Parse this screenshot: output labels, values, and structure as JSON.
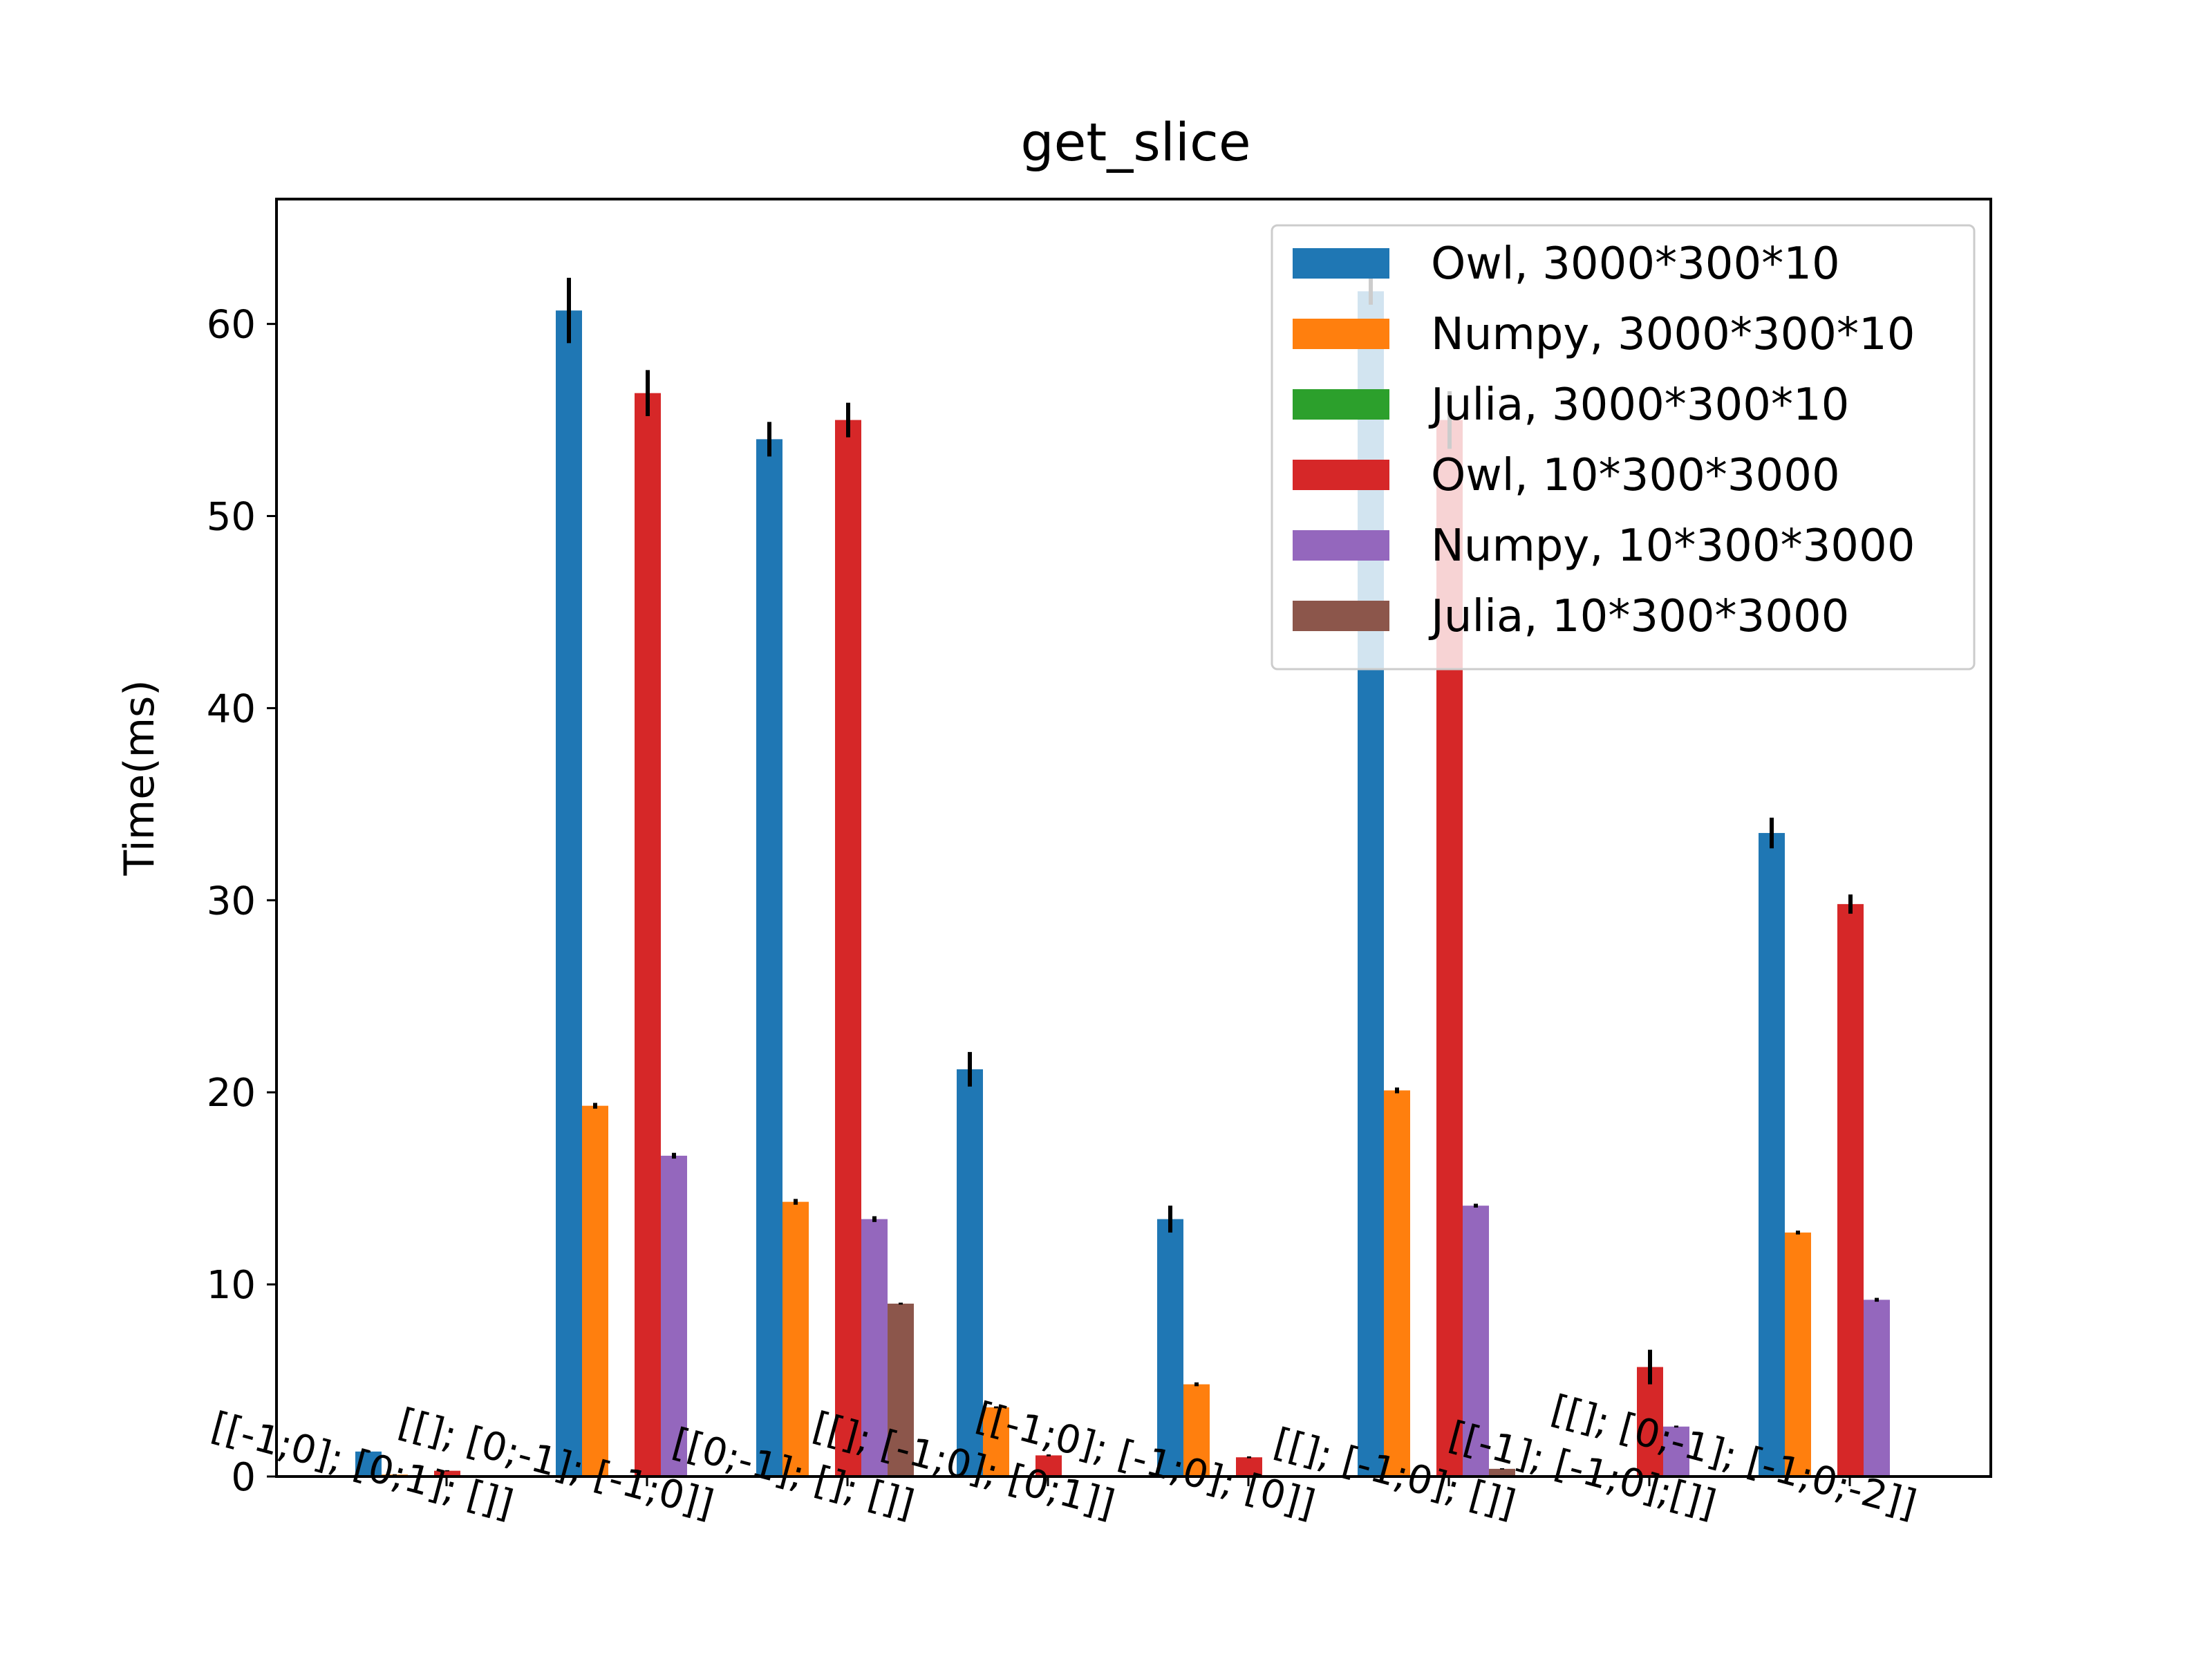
{
  "chart_data": {
    "type": "bar",
    "title": "get_slice",
    "xlabel": "",
    "ylabel": "Time(ms)",
    "ylim": [
      0,
      66.5
    ],
    "yticks": [
      0,
      10,
      20,
      30,
      40,
      50,
      60
    ],
    "grid": false,
    "legend_position": "top-right",
    "categories": [
      "[[-1;0]; [0;1]; []]",
      "[[]; [0;-1]; [-1;0]]",
      "[[0;-1]; []; []]",
      "[[]; [-1;0]; [0;1]]",
      "[[-1;0]; [-1;0]; [0]]",
      "[[]; [-1;0]; []]",
      "[[-1]; [-1;0];[]]",
      "[[]; [0;-1]; [-1;0;-2]]"
    ],
    "series": [
      {
        "name": "Owl, 3000*300*10",
        "color": "#1f77b4",
        "values": [
          1.3,
          60.7,
          54.0,
          21.2,
          13.4,
          61.7,
          0.0,
          33.5
        ],
        "errors": [
          0.05,
          1.7,
          0.9,
          0.9,
          0.7,
          0.7,
          0.0,
          0.8
        ]
      },
      {
        "name": "Numpy, 3000*300*10",
        "color": "#ff7f0e",
        "values": [
          0.1,
          19.3,
          14.3,
          3.6,
          4.8,
          20.1,
          0.0,
          12.7
        ],
        "errors": [
          0.02,
          0.15,
          0.15,
          0.05,
          0.1,
          0.15,
          0.0,
          0.1
        ]
      },
      {
        "name": "Julia, 3000*300*10",
        "color": "#2ca02c",
        "values": [
          0.0,
          0.0,
          0.0,
          0.0,
          0.0,
          0.0,
          0.0,
          0.0
        ],
        "errors": [
          0,
          0,
          0,
          0,
          0,
          0,
          0,
          0
        ]
      },
      {
        "name": "Owl, 10*300*3000",
        "color": "#d62728",
        "values": [
          0.3,
          56.4,
          55.0,
          1.1,
          1.0,
          55.0,
          5.7,
          29.8
        ],
        "errors": [
          0.03,
          1.2,
          0.9,
          0.05,
          0.05,
          1.5,
          0.9,
          0.5
        ]
      },
      {
        "name": "Numpy, 10*300*3000",
        "color": "#9467bd",
        "values": [
          0.05,
          16.7,
          13.4,
          0.0,
          0.0,
          14.1,
          2.6,
          9.2
        ],
        "errors": [
          0.01,
          0.15,
          0.15,
          0.0,
          0.0,
          0.1,
          0.05,
          0.1
        ]
      },
      {
        "name": "Julia, 10*300*3000",
        "color": "#8c564b",
        "values": [
          0.05,
          0.0,
          9.0,
          0.0,
          0.0,
          0.4,
          0.0,
          0.0
        ],
        "errors": [
          0.01,
          0.0,
          0.05,
          0.0,
          0.0,
          0.03,
          0.0,
          0.0
        ]
      }
    ]
  }
}
